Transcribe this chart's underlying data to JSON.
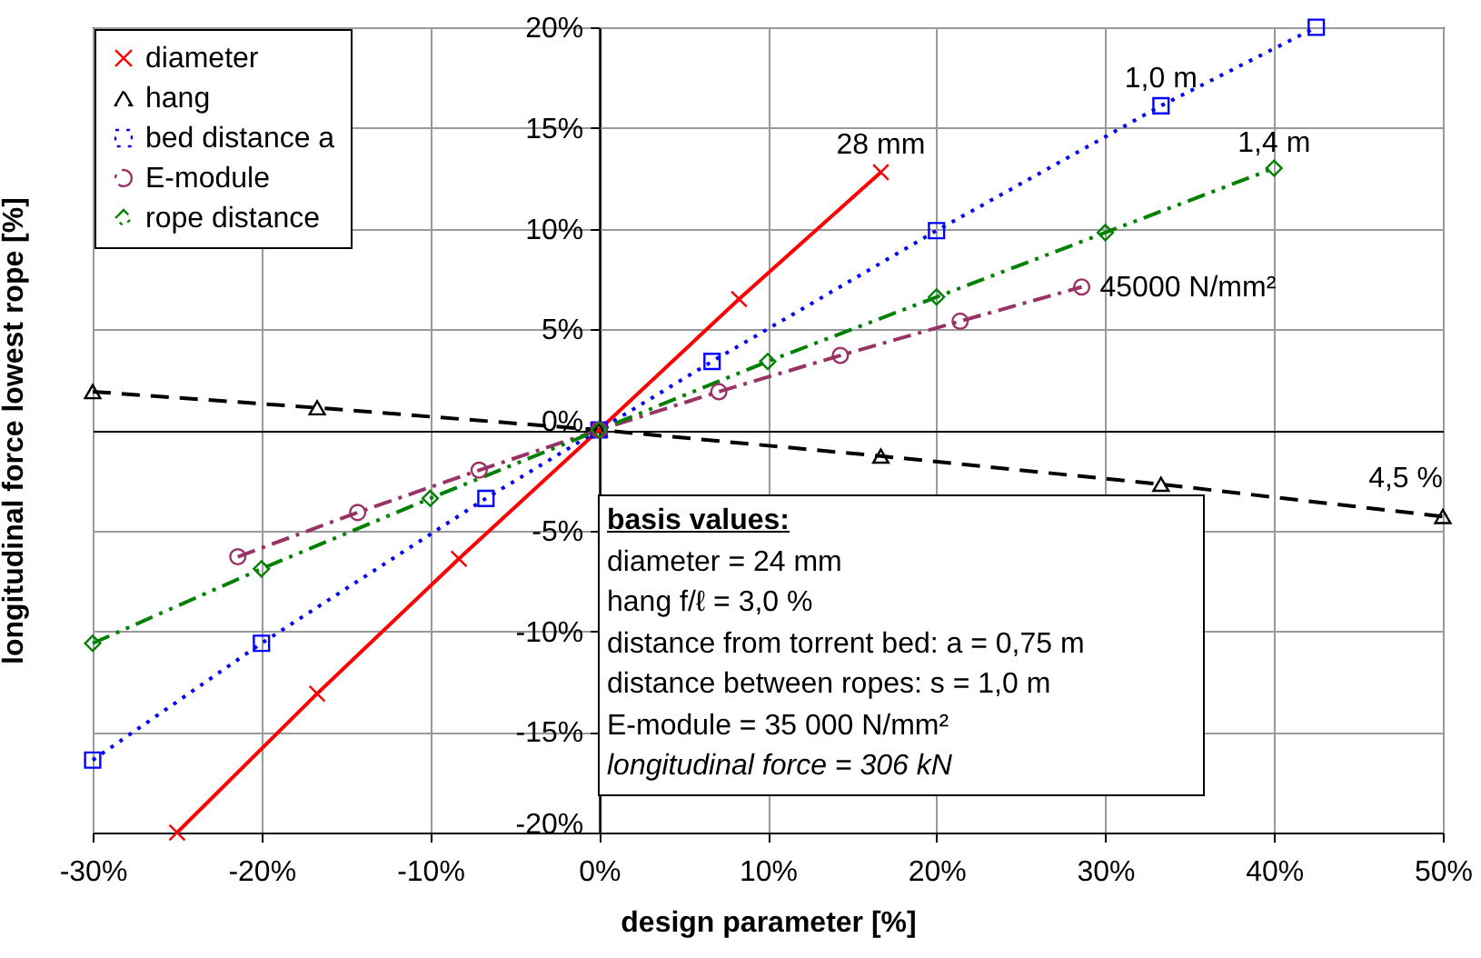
{
  "chart_data": {
    "type": "line",
    "xlabel": "design parameter  [%]",
    "ylabel": "longitudinal force lowest rope [%]",
    "xlim": [
      -30,
      50
    ],
    "ylim": [
      -20,
      20
    ],
    "xticks": [
      {
        "value": -30,
        "label": "-30%"
      },
      {
        "value": -20,
        "label": "-20%"
      },
      {
        "value": -10,
        "label": "-10%"
      },
      {
        "value": 0,
        "label": "0%"
      },
      {
        "value": 10,
        "label": "10%"
      },
      {
        "value": 20,
        "label": "20%"
      },
      {
        "value": 30,
        "label": "30%"
      },
      {
        "value": 40,
        "label": "40%"
      },
      {
        "value": 50,
        "label": "50%"
      }
    ],
    "yticks": [
      {
        "value": -20,
        "label": "-20%"
      },
      {
        "value": -15,
        "label": "-15%"
      },
      {
        "value": -10,
        "label": "-10%"
      },
      {
        "value": -5,
        "label": "-5%"
      },
      {
        "value": 0,
        "label": "0%"
      },
      {
        "value": 5,
        "label": "5%"
      },
      {
        "value": 10,
        "label": "10%"
      },
      {
        "value": 15,
        "label": "15%"
      },
      {
        "value": 20,
        "label": "20%"
      }
    ],
    "grid": true,
    "legend": "top left",
    "series": [
      {
        "name": "diameter",
        "color": "#ff0000",
        "marker": "cross",
        "line_style": "solid",
        "x": [
          -25,
          -16.7,
          -8.3,
          0,
          8.3,
          16.7
        ],
        "values": [
          -20,
          -13.1,
          -6.4,
          0,
          6.5,
          12.8
        ]
      },
      {
        "name": "hang",
        "color": "#000000",
        "marker": "triangle",
        "line_style": "dashed",
        "x": [
          -30,
          -16.7,
          0,
          16.7,
          33.3,
          50
        ],
        "values": [
          1.9,
          1.1,
          0,
          -1.3,
          -2.7,
          -4.3
        ]
      },
      {
        "name": "bed distance a",
        "color": "#0000ff",
        "marker": "square",
        "line_style": "dotted",
        "x": [
          -30,
          -20,
          -6.7,
          0,
          6.7,
          20,
          33.3,
          42.5
        ],
        "values": [
          -16.4,
          -10.6,
          -3.4,
          0,
          3.4,
          9.9,
          16.1,
          20
        ]
      },
      {
        "name": "E-module",
        "color": "#993366",
        "marker": "circle",
        "line_style": "dashed",
        "x": [
          -21.4,
          -14.3,
          -7.1,
          0,
          7.1,
          14.3,
          21.4,
          28.6
        ],
        "values": [
          -6.3,
          -4.1,
          -2,
          0,
          1.9,
          3.7,
          5.4,
          7.1
        ]
      },
      {
        "name": "rope distance",
        "color": "#008000",
        "marker": "diamond",
        "line_style": "dashed",
        "x": [
          -30,
          -20,
          -10,
          0,
          10,
          20,
          30,
          40
        ],
        "values": [
          -10.6,
          -6.9,
          -3.4,
          0,
          3.4,
          6.6,
          9.8,
          13
        ]
      }
    ],
    "annotations": [
      {
        "text": "28 mm",
        "x": 16.7,
        "y": 12.8
      },
      {
        "text": "1,0 m",
        "x": 33.3,
        "y": 16.1
      },
      {
        "text": "1,4 m",
        "x": 40,
        "y": 13
      },
      {
        "text": "45000 N/mm²",
        "x": 28.6,
        "y": 7.1
      },
      {
        "text": "4,5 %",
        "x": 50,
        "y": -4.3
      },
      "basis values:",
      "diameter = 24 mm",
      "hang f/ℓ = 3,0 %",
      "distance from torrent bed: a = 0,75 m",
      "distance between ropes: s = 1,0 m",
      "E-module = 35 000 N/mm²",
      "longitudinal force = 306 kN"
    ]
  }
}
